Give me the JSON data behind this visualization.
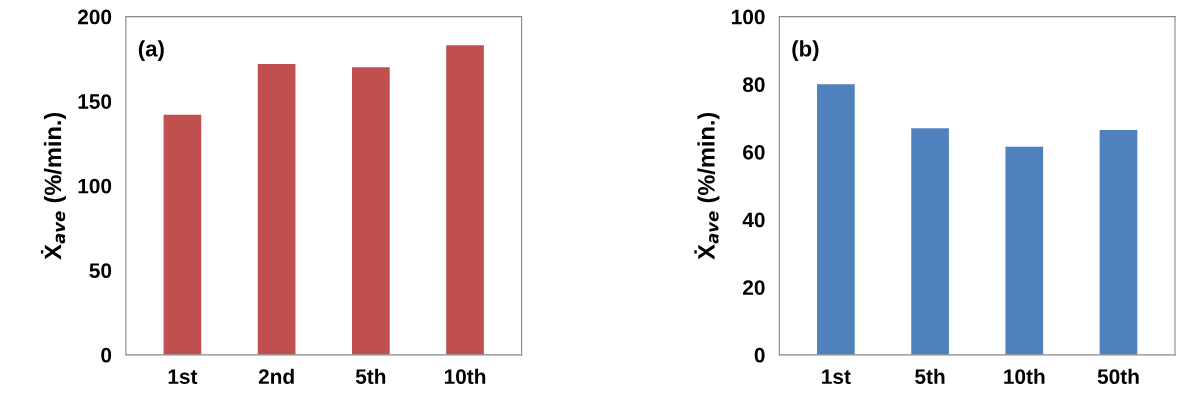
{
  "chart_data": [
    {
      "type": "bar",
      "categories": [
        "1st",
        "2nd",
        "5th",
        "10th"
      ],
      "values": [
        142,
        172,
        170,
        183
      ],
      "color": "#c0504d",
      "ylabel": "Ẋ$_{ave}$ (%/min.)",
      "ylim": [
        0,
        200
      ],
      "yticks": [
        0,
        50,
        100,
        150,
        200
      ],
      "annotations": [
        "(a)"
      ]
    },
    {
      "type": "bar",
      "categories": [
        "1st",
        "5th",
        "10th",
        "50th"
      ],
      "values": [
        80,
        67,
        61.5,
        66.5
      ],
      "color": "#4f81bd",
      "ylabel": "Ẋ$_{ave}$ (%/min.)",
      "ylim": [
        0,
        100
      ],
      "yticks": [
        0,
        20,
        40,
        60,
        80,
        100
      ],
      "annotations": [
        "(b)"
      ]
    }
  ]
}
